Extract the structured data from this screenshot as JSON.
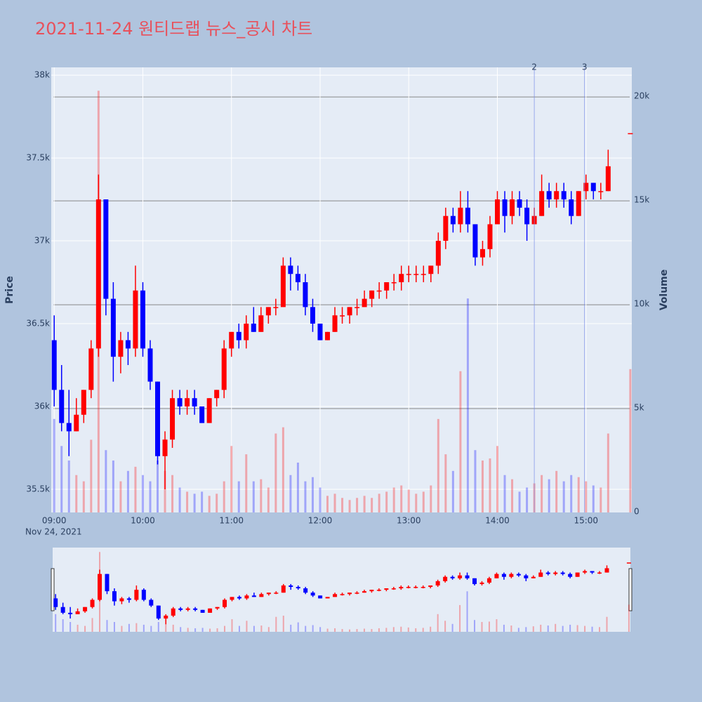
{
  "chart_data": {
    "type": "candlestick",
    "title": "2021-11-24 원티드랩 뉴스_공시 차트",
    "y_title": "Price",
    "y2_title": "Volume",
    "x_date_label": "Nov 24, 2021",
    "increasing_color": "#ff0000",
    "decreasing_color": "#0000ff",
    "x": [
      "2021-11-24 09:00",
      "2021-11-24 09:05",
      "2021-11-24 09:10",
      "2021-11-24 09:15",
      "2021-11-24 09:20",
      "2021-11-24 09:25",
      "2021-11-24 09:30",
      "2021-11-24 09:35",
      "2021-11-24 09:40",
      "2021-11-24 09:45",
      "2021-11-24 09:50",
      "2021-11-24 09:55",
      "2021-11-24 10:00",
      "2021-11-24 10:05",
      "2021-11-24 10:10",
      "2021-11-24 10:15",
      "2021-11-24 10:20",
      "2021-11-24 10:25",
      "2021-11-24 10:30",
      "2021-11-24 10:35",
      "2021-11-24 10:40",
      "2021-11-24 10:45",
      "2021-11-24 10:50",
      "2021-11-24 10:55",
      "2021-11-24 11:00",
      "2021-11-24 11:05",
      "2021-11-24 11:10",
      "2021-11-24 11:15",
      "2021-11-24 11:20",
      "2021-11-24 11:25",
      "2021-11-24 11:30",
      "2021-11-24 11:35",
      "2021-11-24 11:40",
      "2021-11-24 11:45",
      "2021-11-24 11:50",
      "2021-11-24 11:55",
      "2021-11-24 12:00",
      "2021-11-24 12:05",
      "2021-11-24 12:10",
      "2021-11-24 12:15",
      "2021-11-24 12:20",
      "2021-11-24 12:25",
      "2021-11-24 12:30",
      "2021-11-24 12:35",
      "2021-11-24 12:40",
      "2021-11-24 12:45",
      "2021-11-24 12:50",
      "2021-11-24 12:55",
      "2021-11-24 13:00",
      "2021-11-24 13:05",
      "2021-11-24 13:10",
      "2021-11-24 13:15",
      "2021-11-24 13:20",
      "2021-11-24 13:25",
      "2021-11-24 13:30",
      "2021-11-24 13:35",
      "2021-11-24 13:40",
      "2021-11-24 13:45",
      "2021-11-24 13:50",
      "2021-11-24 13:55",
      "2021-11-24 14:00",
      "2021-11-24 14:05",
      "2021-11-24 14:10",
      "2021-11-24 14:15",
      "2021-11-24 14:20",
      "2021-11-24 14:25",
      "2021-11-24 14:30",
      "2021-11-24 14:35",
      "2021-11-24 14:40",
      "2021-11-24 14:45",
      "2021-11-24 14:50",
      "2021-11-24 14:55",
      "2021-11-24 15:00",
      "2021-11-24 15:05",
      "2021-11-24 15:10",
      "2021-11-24 15:15",
      "2021-11-24 15:30"
    ],
    "open": [
      36400,
      36100,
      35900,
      35850,
      35950,
      36100,
      36350,
      37250,
      36650,
      36300,
      36400,
      36350,
      36700,
      36350,
      36150,
      35700,
      35800,
      36050,
      36000,
      36050,
      36000,
      35900,
      36050,
      36100,
      36350,
      36450,
      36400,
      36500,
      36450,
      36550,
      36600,
      36600,
      36850,
      36800,
      36750,
      36600,
      36500,
      36400,
      36450,
      36550,
      36550,
      36600,
      36600,
      36650,
      36700,
      36700,
      36750,
      36750,
      36800,
      36800,
      36800,
      36800,
      36850,
      37000,
      37150,
      37100,
      37200,
      37100,
      36900,
      36950,
      37100,
      37250,
      37150,
      37250,
      37200,
      37100,
      37150,
      37300,
      37250,
      37300,
      37250,
      37150,
      37300,
      37350,
      37300,
      37300,
      37650
    ],
    "high": [
      36550,
      36250,
      36100,
      36050,
      36100,
      36400,
      37400,
      37250,
      36750,
      36450,
      36450,
      36850,
      36750,
      36400,
      36150,
      35850,
      36100,
      36100,
      36100,
      36100,
      36000,
      36050,
      36100,
      36400,
      36450,
      36500,
      36550,
      36600,
      36600,
      36600,
      36650,
      36900,
      36900,
      36850,
      36800,
      36650,
      36500,
      36450,
      36600,
      36600,
      36600,
      36650,
      36700,
      36700,
      36750,
      36750,
      36800,
      36850,
      36850,
      36850,
      36850,
      36850,
      37050,
      37200,
      37200,
      37300,
      37300,
      37100,
      37000,
      37150,
      37300,
      37300,
      37300,
      37300,
      37250,
      37200,
      37400,
      37350,
      37350,
      37350,
      37300,
      37300,
      37400,
      37350,
      37350,
      37550,
      37650
    ],
    "low": [
      36000,
      35850,
      35700,
      35850,
      35900,
      36050,
      36300,
      36550,
      36150,
      36200,
      36250,
      36300,
      36300,
      36100,
      35650,
      35500,
      35750,
      35950,
      35950,
      35950,
      35900,
      35900,
      36000,
      36050,
      36300,
      36350,
      36350,
      36450,
      36450,
      36500,
      36550,
      36600,
      36700,
      36700,
      36550,
      36450,
      36400,
      36400,
      36450,
      36500,
      36500,
      36550,
      36600,
      36600,
      36650,
      36650,
      36700,
      36700,
      36750,
      36750,
      36750,
      36750,
      36800,
      36950,
      37050,
      37050,
      37050,
      36850,
      36850,
      36900,
      37100,
      37050,
      37100,
      37150,
      37000,
      37100,
      37150,
      37200,
      37200,
      37200,
      37100,
      37150,
      37250,
      37250,
      37250,
      37300,
      37650
    ],
    "close": [
      36100,
      35900,
      35850,
      35950,
      36100,
      36350,
      37250,
      36650,
      36300,
      36400,
      36350,
      36700,
      36350,
      36150,
      35700,
      35800,
      36050,
      36000,
      36050,
      36000,
      35900,
      36050,
      36100,
      36350,
      36450,
      36400,
      36500,
      36450,
      36550,
      36600,
      36600,
      36850,
      36800,
      36750,
      36600,
      36500,
      36400,
      36450,
      36550,
      36550,
      36600,
      36600,
      36650,
      36700,
      36700,
      36750,
      36750,
      36800,
      36800,
      36800,
      36800,
      36850,
      37000,
      37150,
      37100,
      37200,
      37100,
      36900,
      36950,
      37100,
      37250,
      37150,
      37250,
      37200,
      37100,
      37150,
      37300,
      37250,
      37300,
      37250,
      37150,
      37300,
      37350,
      37300,
      37300,
      37450,
      37650
    ],
    "volume": [
      4500,
      3200,
      2500,
      1800,
      1500,
      3500,
      20300,
      3000,
      2500,
      1500,
      2000,
      2200,
      1800,
      1500,
      2500,
      2000,
      1800,
      1200,
      1000,
      900,
      1000,
      800,
      900,
      1500,
      3200,
      1500,
      2800,
      1500,
      1600,
      1200,
      3800,
      4100,
      1800,
      2400,
      1500,
      1700,
      1200,
      800,
      900,
      700,
      600,
      700,
      800,
      700,
      900,
      1000,
      1200,
      1300,
      1100,
      900,
      1000,
      1300,
      4500,
      2800,
      2000,
      6800,
      10300,
      3000,
      2500,
      2600,
      3200,
      1800,
      1600,
      1000,
      1200,
      1400,
      1800,
      1600,
      2000,
      1500,
      1800,
      1700,
      1500,
      1300,
      1200,
      3800,
      6900
    ],
    "events": [
      {
        "x": "2021-11-24 14:25",
        "label": "2"
      },
      {
        "x": "2021-11-24 14:59",
        "label": "3"
      }
    ],
    "xlim": [
      "2021-11-24 08:58",
      "2021-11-24 15:31"
    ],
    "xticks": [
      {
        "value": "2021-11-24 09:00",
        "label": "09:00"
      },
      {
        "value": "2021-11-24 10:00",
        "label": "10:00"
      },
      {
        "value": "2021-11-24 11:00",
        "label": "11:00"
      },
      {
        "value": "2021-11-24 12:00",
        "label": "12:00"
      },
      {
        "value": "2021-11-24 13:00",
        "label": "13:00"
      },
      {
        "value": "2021-11-24 14:00",
        "label": "14:00"
      },
      {
        "value": "2021-11-24 15:00",
        "label": "15:00"
      }
    ],
    "ylim": [
      35360,
      38047
    ],
    "yticks": [
      {
        "value": 35500,
        "label": "35.5k"
      },
      {
        "value": 36000,
        "label": "36k"
      },
      {
        "value": 36500,
        "label": "36.5k"
      },
      {
        "value": 37000,
        "label": "37k"
      },
      {
        "value": 37500,
        "label": "37.5k"
      },
      {
        "value": 38000,
        "label": "38k"
      }
    ],
    "y2lim": [
      0,
      21424
    ],
    "y2ticks": [
      0,
      {
        "value": 5000,
        "label": "5k"
      },
      {
        "value": 10000,
        "label": "10k"
      },
      {
        "value": 15000,
        "label": "15k"
      },
      {
        "value": 20000,
        "label": "20k"
      }
    ],
    "grid": true,
    "range_slider": true
  }
}
